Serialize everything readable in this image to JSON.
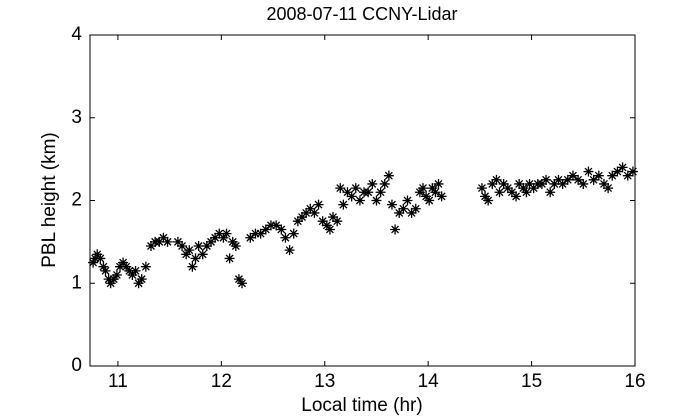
{
  "chart_data": {
    "type": "scatter",
    "title": "2008-07-11 CCNY-Lidar",
    "xlabel": "Local time (hr)",
    "ylabel": "PBL height (km)",
    "color": "#000000",
    "marker": "asterisk",
    "xlim": [
      10.73,
      16
    ],
    "ylim": [
      0,
      4
    ],
    "xticks": [
      11,
      12,
      13,
      14,
      15,
      16
    ],
    "yticks": [
      0,
      1,
      2,
      3,
      4
    ],
    "grid": false,
    "x": [
      10.76,
      10.78,
      10.8,
      10.83,
      10.86,
      10.88,
      10.91,
      10.93,
      10.96,
      10.99,
      11.02,
      11.05,
      11.08,
      11.11,
      11.14,
      11.17,
      11.2,
      11.23,
      11.27,
      11.32,
      11.36,
      11.4,
      11.44,
      11.48,
      11.58,
      11.62,
      11.66,
      11.69,
      11.72,
      11.75,
      11.78,
      11.82,
      11.86,
      11.9,
      11.94,
      11.98,
      12.02,
      12.05,
      12.08,
      12.11,
      12.14,
      12.17,
      12.2,
      12.28,
      12.33,
      12.38,
      12.43,
      12.48,
      12.53,
      12.58,
      12.62,
      12.66,
      12.7,
      12.74,
      12.78,
      12.82,
      12.86,
      12.9,
      12.94,
      12.98,
      13.02,
      13.05,
      13.08,
      13.12,
      13.15,
      13.18,
      13.22,
      13.26,
      13.3,
      13.34,
      13.38,
      13.42,
      13.46,
      13.5,
      13.54,
      13.58,
      13.62,
      13.65,
      13.68,
      13.72,
      13.76,
      13.8,
      13.84,
      13.88,
      13.92,
      13.95,
      13.98,
      14.01,
      14.04,
      14.07,
      14.1,
      14.13,
      14.52,
      14.55,
      14.58,
      14.62,
      14.66,
      14.69,
      14.73,
      14.77,
      14.81,
      14.85,
      14.88,
      14.92,
      14.95,
      14.98,
      15.02,
      15.06,
      15.1,
      15.14,
      15.18,
      15.22,
      15.26,
      15.3,
      15.35,
      15.4,
      15.45,
      15.5,
      15.55,
      15.6,
      15.65,
      15.7,
      15.74,
      15.78,
      15.83,
      15.88,
      15.93,
      15.98
    ],
    "values": [
      1.25,
      1.3,
      1.35,
      1.3,
      1.2,
      1.15,
      1.05,
      1.0,
      1.05,
      1.1,
      1.2,
      1.25,
      1.2,
      1.15,
      1.1,
      1.15,
      1.0,
      1.05,
      1.2,
      1.45,
      1.5,
      1.5,
      1.55,
      1.5,
      1.5,
      1.45,
      1.35,
      1.4,
      1.2,
      1.3,
      1.45,
      1.35,
      1.45,
      1.5,
      1.55,
      1.6,
      1.55,
      1.6,
      1.3,
      1.5,
      1.45,
      1.05,
      1.0,
      1.55,
      1.6,
      1.6,
      1.65,
      1.7,
      1.7,
      1.65,
      1.55,
      1.4,
      1.6,
      1.75,
      1.8,
      1.85,
      1.9,
      1.85,
      1.95,
      1.75,
      1.7,
      1.65,
      1.8,
      1.75,
      2.15,
      1.95,
      2.1,
      2.05,
      2.15,
      2.0,
      2.1,
      2.1,
      2.2,
      2.0,
      2.1,
      2.2,
      2.3,
      1.95,
      1.65,
      1.85,
      1.9,
      2.0,
      1.85,
      1.9,
      2.1,
      2.15,
      2.05,
      2.0,
      2.15,
      2.1,
      2.2,
      2.05,
      2.15,
      2.05,
      2.0,
      2.2,
      2.25,
      2.1,
      2.2,
      2.15,
      2.1,
      2.05,
      2.2,
      2.15,
      2.1,
      2.2,
      2.15,
      2.2,
      2.2,
      2.25,
      2.1,
      2.2,
      2.25,
      2.2,
      2.25,
      2.3,
      2.25,
      2.2,
      2.35,
      2.25,
      2.3,
      2.2,
      2.15,
      2.3,
      2.35,
      2.4,
      2.3,
      2.35
    ]
  }
}
